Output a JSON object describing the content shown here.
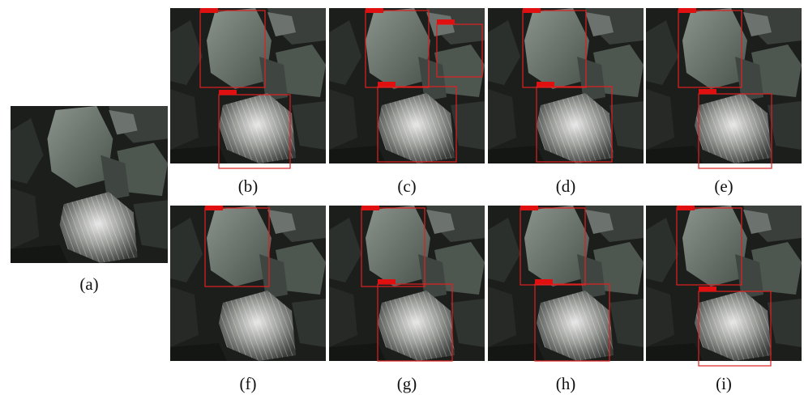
{
  "panels": [
    {
      "caption": "(a)"
    },
    {
      "caption": "(b)"
    },
    {
      "caption": "(c)"
    },
    {
      "caption": "(d)"
    },
    {
      "caption": "(e)"
    },
    {
      "caption": "(f)"
    },
    {
      "caption": "(g)"
    },
    {
      "caption": "(h)"
    },
    {
      "caption": "(i)"
    }
  ]
}
